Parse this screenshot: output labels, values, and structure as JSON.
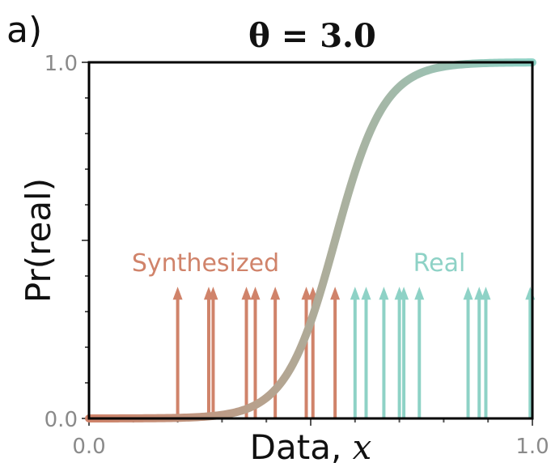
{
  "panel_label": "a)",
  "chart_data": {
    "type": "line",
    "title": "θ = 3.0",
    "xlabel": "Data, x",
    "ylabel": "Pr(real)",
    "xlim": [
      0.0,
      1.0
    ],
    "ylim": [
      0.0,
      1.0
    ],
    "x_ticks": [
      "0.0",
      "1.0"
    ],
    "y_ticks": [
      "0.0",
      "1.0"
    ],
    "grid": false,
    "curve": {
      "kind": "sigmoid",
      "midpoint": 0.555,
      "steepness": 18,
      "color_low": "#d0836a",
      "color_high": "#8ed2c6"
    },
    "groups": [
      {
        "name": "Synthesized",
        "color": "#d0836a",
        "x": [
          0.2,
          0.27,
          0.28,
          0.355,
          0.375,
          0.42,
          0.49,
          0.505,
          0.555
        ]
      },
      {
        "name": "Real",
        "color": "#8ed2c6",
        "x": [
          0.6,
          0.625,
          0.665,
          0.7,
          0.71,
          0.745,
          0.855,
          0.88,
          0.895,
          0.995
        ]
      }
    ],
    "arrow_height": 0.37
  }
}
